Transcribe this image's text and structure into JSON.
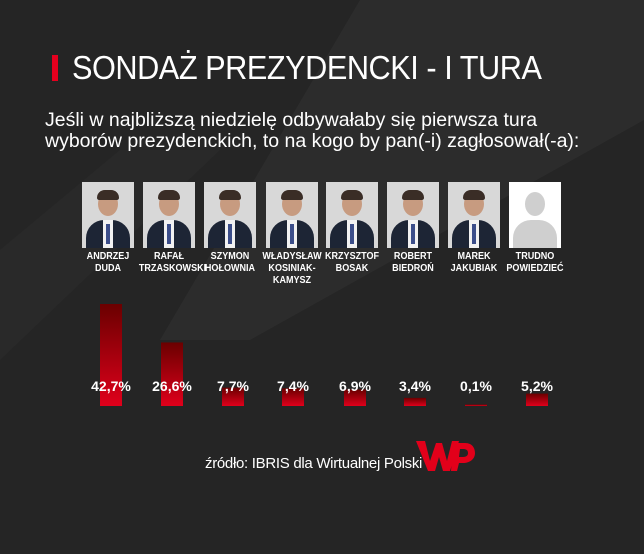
{
  "title": "SONDAŻ PREZYDENCKI - I TURA",
  "question": "Jeśli w najbliższą niedzielę odbywałaby się pierwsza tura wyborów prezydenckich, to na kogo by pan(-i) zagłosował(-a):",
  "candidates": [
    {
      "name": "ANDRZEJ\nDUDA",
      "photo": "person"
    },
    {
      "name": "RAFAŁ\nTRZASKOWSKI",
      "photo": "person"
    },
    {
      "name": "SZYMON\nHOŁOWNIA",
      "photo": "person"
    },
    {
      "name": "WŁADYSŁAW\nKOSINIAK-\nKAMYSZ",
      "photo": "person"
    },
    {
      "name": "KRZYSZTOF\nBOSAK",
      "photo": "person"
    },
    {
      "name": "ROBERT\nBIEDROŃ",
      "photo": "person"
    },
    {
      "name": "MAREK\nJAKUBIAK",
      "photo": "person"
    },
    {
      "name": "TRUDNO\nPOWIEDZIEĆ",
      "photo": "anonymous-silhouette"
    }
  ],
  "chart_data": {
    "type": "bar",
    "categories": [
      "ANDRZEJ DUDA",
      "RAFAŁ TRZASKOWSKI",
      "SZYMON HOŁOWNIA",
      "WŁADYSŁAW KOSINIAK-KAMYSZ",
      "KRZYSZTOF BOSAK",
      "ROBERT BIEDROŃ",
      "MAREK JAKUBIAK",
      "TRUDNO POWIEDZIEĆ"
    ],
    "values": [
      42.7,
      26.6,
      7.7,
      7.4,
      6.9,
      3.4,
      0.1,
      5.2
    ],
    "labels": [
      "42,7%",
      "26,6%",
      "7,7%",
      "7,4%",
      "6,9%",
      "3,4%",
      "0,1%",
      "5,2%"
    ],
    "ylim": [
      0,
      42.7
    ],
    "grid": false,
    "colors": {
      "bar_top": "#e0001b",
      "bar_bottom": "#6a0000"
    }
  },
  "source": "źródło: IBRIS dla Wirtualnej Polski",
  "logo": {
    "name": "wp-logo",
    "color": "#e2001a"
  },
  "colors": {
    "accent": "#e5001e",
    "background": "#252525",
    "text": "#ffffff"
  }
}
